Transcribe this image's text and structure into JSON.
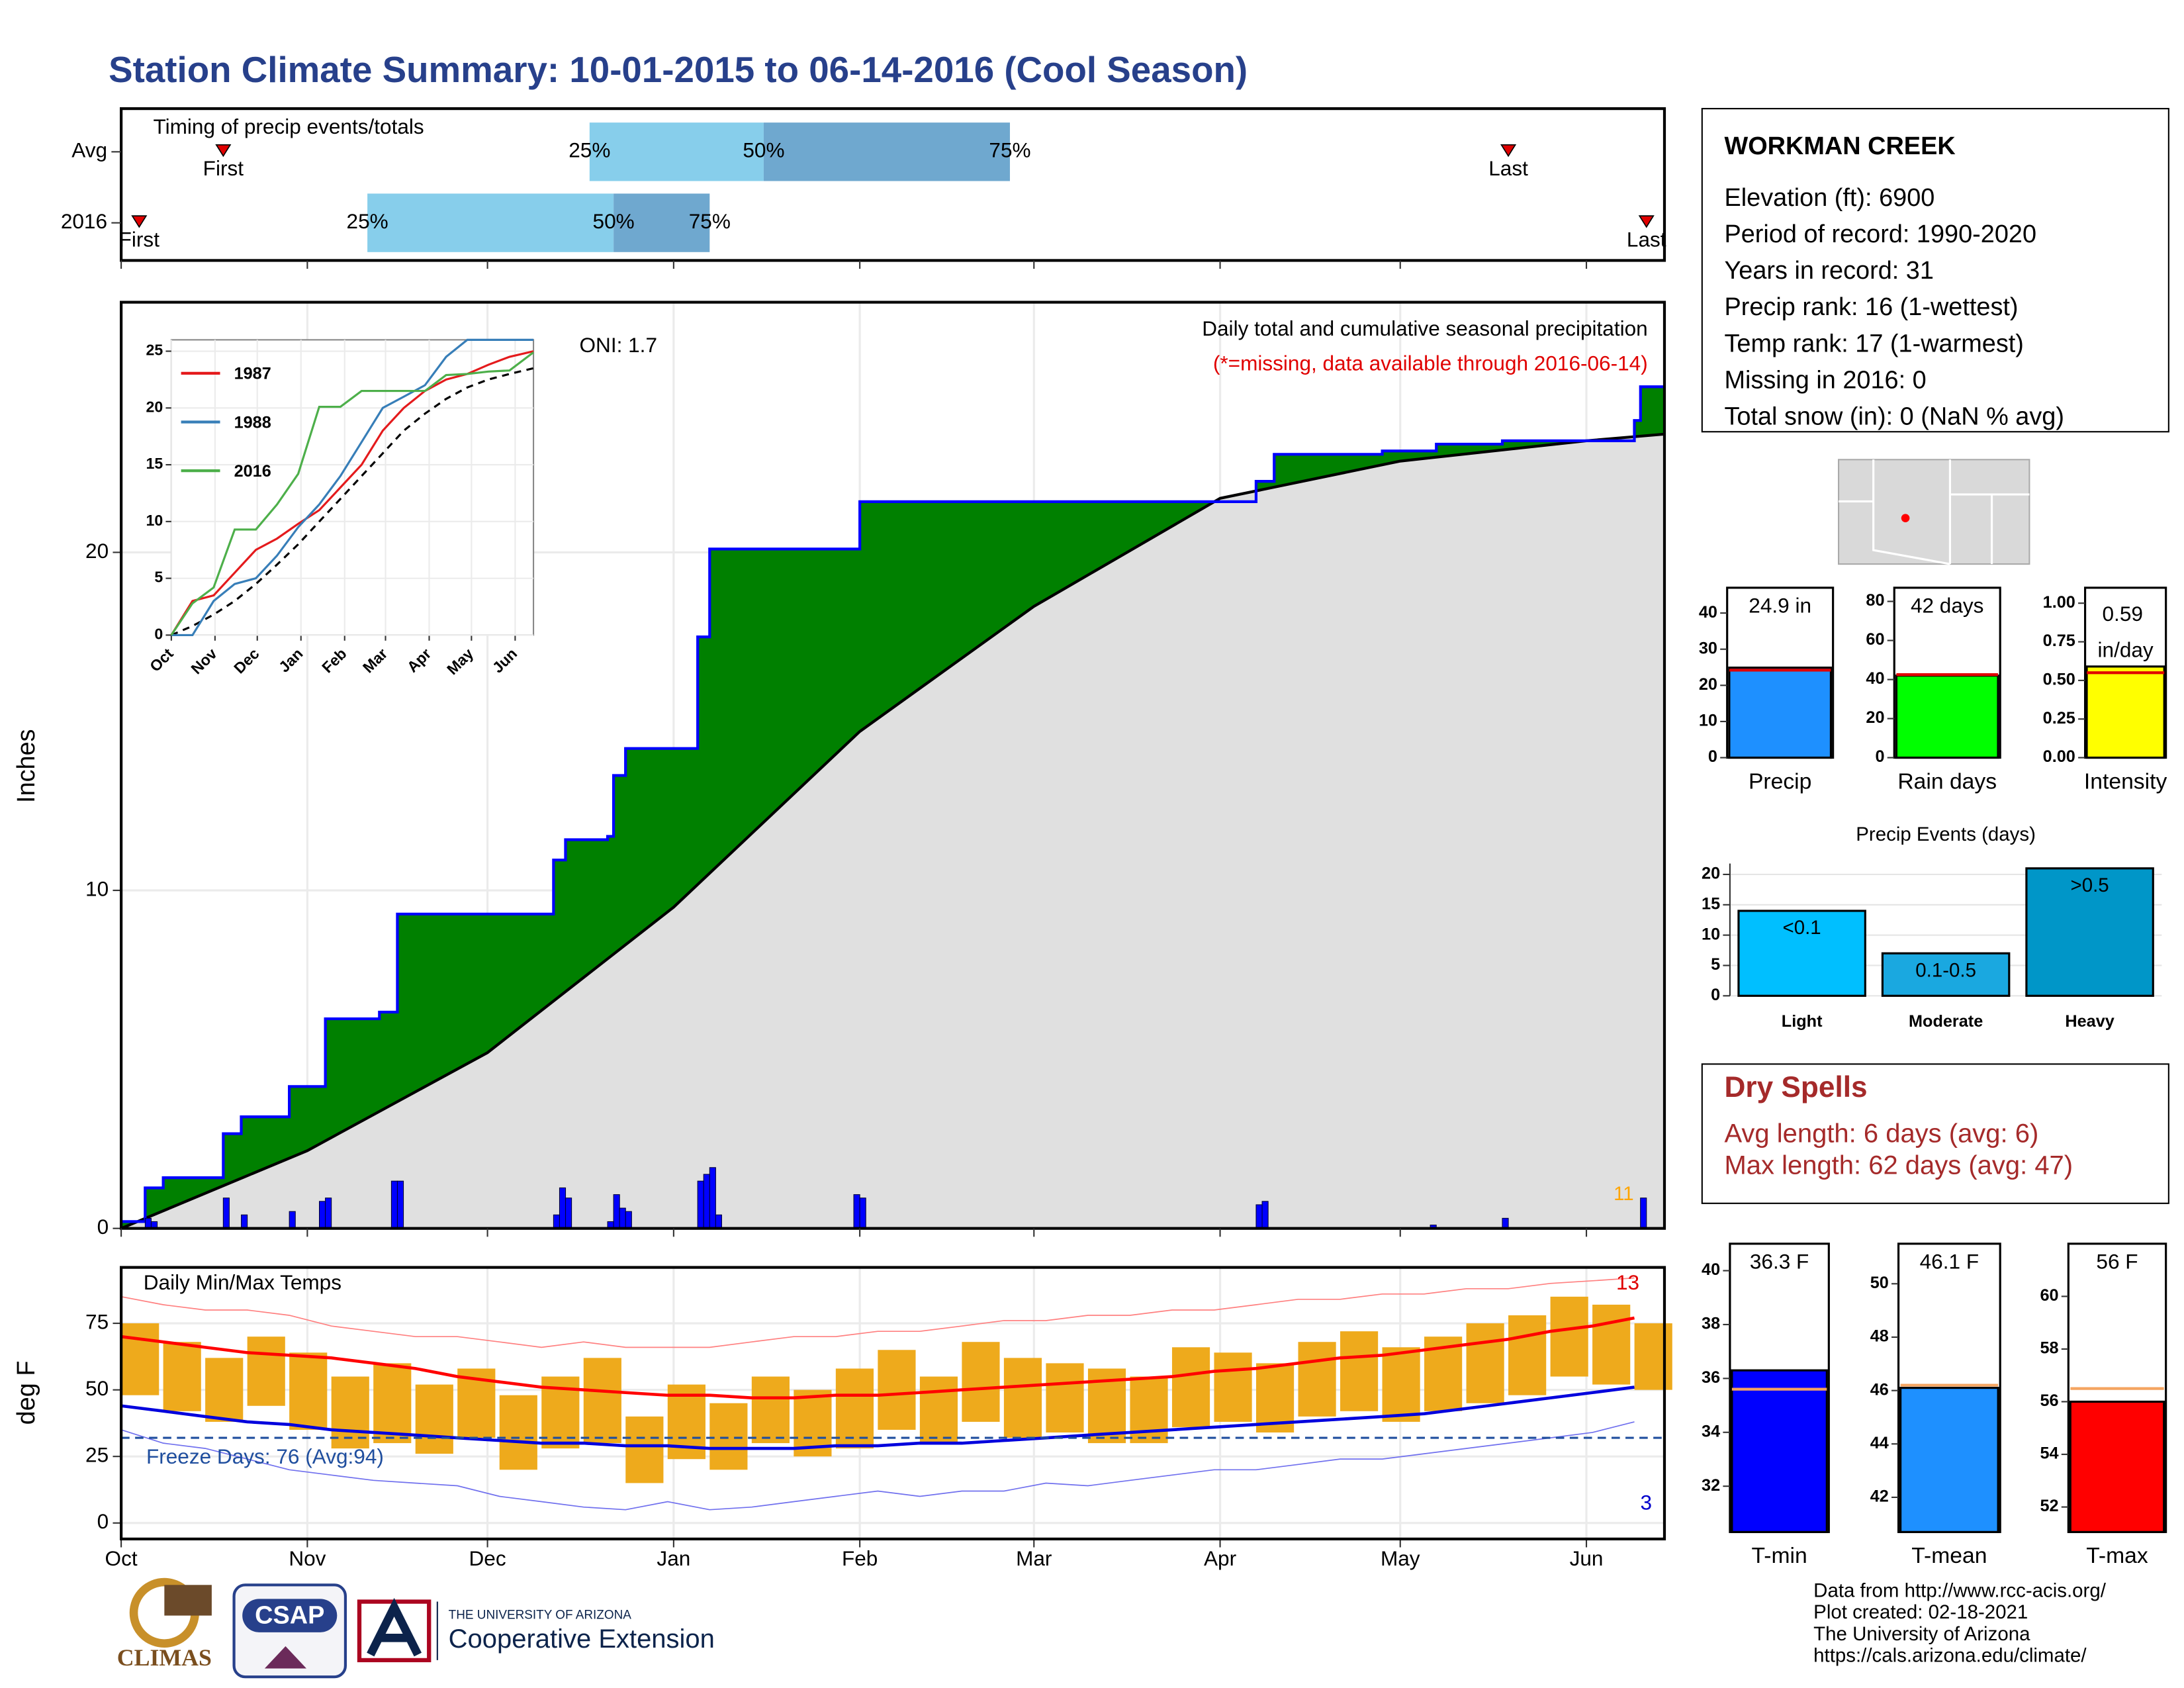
{
  "title": "Station Climate Summary: 10-01-2015 to 06-14-2016 (Cool Season)",
  "station": {
    "name": "WORKMAN CREEK",
    "lines": [
      "Elevation (ft): 6900",
      "Period of record: 1990-2020",
      "Years in record: 31",
      "Precip rank: 16 (1-wettest)",
      "Temp rank: 17 (1-warmest)",
      "Missing in 2016: 0",
      "Total snow (in): 0 (NaN % avg)"
    ]
  },
  "dry_spells": {
    "title": "Dry Spells",
    "lines": [
      "Avg length: 6 days (avg: 6)",
      "Max length: 62 days (avg: 47)"
    ]
  },
  "footer": [
    "Data from http://www.rcc-acis.org/",
    "Plot created: 02-18-2021",
    "The University of Arizona",
    "https://cals.arizona.edu/climate/"
  ],
  "logos": {
    "climas": "CLIMAS",
    "csap": "CSAP",
    "university": "THE UNIVERSITY OF ARIZONA",
    "extension": "Cooperative Extension"
  },
  "chart_data": [
    {
      "type": "timing",
      "title": "Timing of precip events/totals",
      "xlim": [
        0,
        257
      ],
      "rows": [
        {
          "label": "Avg",
          "first": 17,
          "q25": 78,
          "q50": 107,
          "q75": 148,
          "last": 231
        },
        {
          "label": "2016",
          "first": 3,
          "q25": 41,
          "q50": 82,
          "q75": 98,
          "last": 254
        }
      ],
      "marker_labels": {
        "first": "First",
        "last": "Last",
        "q25": "25%",
        "q50": "50%",
        "q75": "75%"
      },
      "colors": {
        "lower": "#87ceeb",
        "upper": "#6fa8cf",
        "marker": "#e00000"
      }
    },
    {
      "type": "precip",
      "ylabel": "Inches",
      "title": "Daily total and cumulative seasonal precipitation",
      "subtitle": "(*=missing, data available through 2016-06-14)",
      "annotation": "ONI: 1.7",
      "event_count": 11,
      "xlim": [
        0,
        257
      ],
      "ylim": [
        0,
        27.4
      ],
      "yticks": [
        0,
        10,
        20
      ],
      "grid": true,
      "cumulative": {
        "color": "#0000ff",
        "fill": "#008000",
        "x": [
          0,
          4,
          7,
          17,
          20,
          28,
          34,
          43,
          46,
          72,
          74,
          81,
          82,
          84,
          96,
          98,
          123,
          189,
          192,
          210,
          219,
          230,
          252,
          253,
          257
        ],
        "values": [
          0.2,
          1.2,
          1.5,
          2.8,
          3.3,
          4.2,
          6.2,
          6.4,
          9.3,
          10.9,
          11.5,
          11.6,
          13.4,
          14.2,
          17.5,
          20.1,
          21.5,
          22.1,
          22.9,
          23.0,
          23.2,
          23.3,
          23.9,
          24.9,
          24.9
        ]
      },
      "average": {
        "color": "#000000",
        "fill": "#e0e0e0",
        "x": [
          0,
          31,
          61,
          92,
          123,
          152,
          183,
          213,
          244,
          257
        ],
        "values": [
          0,
          2.3,
          5.2,
          9.5,
          14.7,
          18.4,
          21.6,
          22.7,
          23.3,
          23.5
        ]
      },
      "daily": {
        "color": "#0000ff",
        "x": [
          4,
          5,
          17,
          20,
          28,
          33,
          34,
          45,
          46,
          72,
          73,
          74,
          81,
          82,
          83,
          84,
          96,
          97,
          98,
          99,
          122,
          123,
          189,
          190,
          218,
          230,
          253
        ],
        "values": [
          0.3,
          0.2,
          0.9,
          0.4,
          0.5,
          0.8,
          0.9,
          1.4,
          1.4,
          0.4,
          1.2,
          0.9,
          0.2,
          1.0,
          0.6,
          0.5,
          1.4,
          1.6,
          1.8,
          0.4,
          1.0,
          0.9,
          0.7,
          0.8,
          0.1,
          0.3,
          0.9
        ]
      }
    },
    {
      "type": "line",
      "xlim": [
        0,
        257
      ],
      "ylim": [
        0,
        26
      ],
      "yticks": [
        0,
        5,
        10,
        15,
        20,
        25
      ],
      "grid": true,
      "xticks": [
        {
          "value": 0,
          "label": "Oct"
        },
        {
          "value": 31,
          "label": "Nov"
        },
        {
          "value": 61,
          "label": "Dec"
        },
        {
          "value": 92,
          "label": "Jan"
        },
        {
          "value": 123,
          "label": "Feb"
        },
        {
          "value": 152,
          "label": "Mar"
        },
        {
          "value": 183,
          "label": "Apr"
        },
        {
          "value": 213,
          "label": "May"
        },
        {
          "value": 244,
          "label": "Jun"
        }
      ],
      "x": [
        0,
        15,
        30,
        45,
        60,
        75,
        90,
        105,
        120,
        135,
        150,
        165,
        180,
        195,
        210,
        225,
        240,
        257
      ],
      "series": [
        {
          "name": "1987",
          "color": "#e41a1c",
          "values": [
            0,
            3,
            3.5,
            5.5,
            7.5,
            8.5,
            9.8,
            11,
            13,
            15,
            18,
            20,
            21.5,
            22.5,
            23,
            23.8,
            24.5,
            25
          ]
        },
        {
          "name": "1988",
          "color": "#377eb8",
          "values": [
            0,
            0,
            3,
            4.5,
            5,
            7,
            9.5,
            11.5,
            14,
            17,
            20,
            21,
            22,
            24.5,
            26,
            26,
            26,
            26
          ]
        },
        {
          "name": "2016",
          "color": "#4daf4a",
          "values": [
            0,
            2.8,
            4.2,
            9.3,
            9.3,
            11.5,
            14.2,
            20.1,
            20.1,
            21.5,
            21.5,
            21.5,
            21.5,
            22.9,
            23,
            23.2,
            23.3,
            24.9
          ]
        }
      ],
      "average": {
        "color": "#000000",
        "values": [
          0,
          0.8,
          1.8,
          3,
          4.5,
          6.2,
          8,
          10,
          12,
          14,
          16,
          18,
          19.5,
          20.8,
          21.8,
          22.5,
          23,
          23.5
        ]
      }
    },
    {
      "type": "range",
      "title": "Daily Min/Max Temps",
      "ylabel": "deg F",
      "annotation": "Freeze Days: 76 (Avg:94)",
      "record_high_count": 13,
      "record_low_count": 3,
      "freeze_line": 32,
      "xlim": [
        0,
        257
      ],
      "ylim": [
        -6,
        96
      ],
      "yticks": [
        0,
        25,
        50,
        75
      ],
      "grid": true,
      "xticks": [
        {
          "value": 0,
          "label": "Oct"
        },
        {
          "value": 31,
          "label": "Nov"
        },
        {
          "value": 61,
          "label": "Dec"
        },
        {
          "value": 92,
          "label": "Jan"
        },
        {
          "value": 123,
          "label": "Feb"
        },
        {
          "value": 152,
          "label": "Mar"
        },
        {
          "value": 183,
          "label": "Apr"
        },
        {
          "value": 213,
          "label": "May"
        },
        {
          "value": 244,
          "label": "Jun"
        }
      ],
      "x": [
        0,
        7,
        14,
        21,
        28,
        35,
        42,
        49,
        56,
        63,
        70,
        77,
        84,
        91,
        98,
        105,
        112,
        119,
        126,
        133,
        140,
        147,
        154,
        161,
        168,
        175,
        182,
        189,
        196,
        203,
        210,
        217,
        224,
        231,
        238,
        245,
        252
      ],
      "tmax": [
        75,
        68,
        62,
        70,
        64,
        55,
        60,
        52,
        58,
        48,
        55,
        62,
        40,
        52,
        45,
        55,
        50,
        58,
        65,
        55,
        68,
        62,
        60,
        58,
        55,
        66,
        64,
        60,
        68,
        72,
        66,
        70,
        75,
        78,
        85,
        82,
        75
      ],
      "tmin": [
        48,
        42,
        38,
        44,
        35,
        28,
        30,
        26,
        32,
        20,
        28,
        30,
        15,
        24,
        20,
        30,
        25,
        28,
        35,
        30,
        38,
        32,
        34,
        30,
        30,
        36,
        38,
        34,
        40,
        42,
        38,
        42,
        45,
        48,
        55,
        52,
        50
      ],
      "normal_max": [
        70,
        68,
        66,
        64,
        63,
        62,
        60,
        58,
        55,
        53,
        51,
        50,
        49,
        48,
        48,
        47,
        47,
        48,
        48,
        49,
        50,
        51,
        52,
        53,
        54,
        55,
        57,
        58,
        60,
        62,
        63,
        65,
        67,
        69,
        72,
        74,
        77
      ],
      "normal_min": [
        44,
        42,
        40,
        38,
        37,
        35,
        34,
        33,
        32,
        31,
        30,
        30,
        29,
        29,
        28,
        28,
        28,
        29,
        29,
        30,
        30,
        31,
        32,
        33,
        34,
        35,
        36,
        37,
        38,
        39,
        40,
        41,
        43,
        45,
        47,
        49,
        51
      ],
      "record_max": [
        85,
        82,
        80,
        80,
        78,
        74,
        72,
        70,
        70,
        68,
        66,
        68,
        66,
        66,
        66,
        68,
        70,
        70,
        72,
        72,
        74,
        76,
        76,
        78,
        78,
        80,
        80,
        82,
        84,
        84,
        86,
        86,
        88,
        88,
        90,
        91,
        92
      ],
      "record_min": [
        35,
        30,
        28,
        24,
        20,
        18,
        16,
        15,
        14,
        10,
        8,
        6,
        5,
        8,
        5,
        6,
        8,
        10,
        12,
        10,
        12,
        12,
        15,
        14,
        16,
        18,
        20,
        20,
        22,
        24,
        24,
        26,
        28,
        30,
        32,
        34,
        38
      ],
      "colors": {
        "bars": "#eeaa1c",
        "normal_max": "#ff0000",
        "normal_min": "#0000dd",
        "record_max": "#ff8080",
        "record_min": "#7070ee",
        "freeze": "#1f4e9e"
      }
    },
    {
      "type": "bar",
      "categories": [
        "Precip"
      ],
      "values": [
        24.9
      ],
      "value_labels": [
        "24.9 in"
      ],
      "reference_values": [
        24.2
      ],
      "color": "#1e90ff",
      "reference_color": "#e00000",
      "ylim": [
        0,
        47
      ],
      "yticks": [
        0,
        10,
        20,
        30,
        40
      ]
    },
    {
      "type": "bar",
      "categories": [
        "Rain days"
      ],
      "values": [
        42
      ],
      "value_labels": [
        "42 days"
      ],
      "reference_values": [
        42.5
      ],
      "color": "#00ff00",
      "reference_color": "#e00000",
      "ylim": [
        0,
        87
      ],
      "yticks": [
        0,
        20,
        40,
        60,
        80
      ]
    },
    {
      "type": "bar",
      "categories": [
        "Intensity"
      ],
      "values": [
        0.59
      ],
      "value_labels": [
        "0.59 in/day"
      ],
      "reference_values": [
        0.55
      ],
      "color": "#ffff00",
      "reference_color": "#e00000",
      "ylim": [
        0,
        1.1
      ],
      "yticks": [
        {
          "value": 0,
          "label": "0.00"
        },
        {
          "value": 0.25,
          "label": "0.25"
        },
        {
          "value": 0.5,
          "label": "0.50"
        },
        {
          "value": 0.75,
          "label": "0.75"
        },
        {
          "value": 1,
          "label": "1.00"
        }
      ]
    },
    {
      "type": "bar",
      "title": "Precip Events (days)",
      "categories": [
        "Light",
        "Moderate",
        "Heavy"
      ],
      "values": [
        14,
        7,
        21
      ],
      "bin_labels": [
        "<0.1",
        "0.1-0.5",
        ">0.5"
      ],
      "colors": [
        "#00bfff",
        "#1aa8e0",
        "#0096c8"
      ],
      "ylim": [
        0,
        21.8
      ],
      "yticks": [
        0,
        5,
        10,
        15,
        20
      ],
      "grid": true
    },
    {
      "type": "bar",
      "categories": [
        "T-min"
      ],
      "values": [
        36.3
      ],
      "value_labels": [
        "36.3 F"
      ],
      "reference_values": [
        35.6
      ],
      "color": "#0000ff",
      "reference_color": "#f4a460",
      "ylim": [
        30.3,
        41
      ],
      "yticks": [
        32,
        34,
        36,
        38,
        40
      ]
    },
    {
      "type": "bar",
      "categories": [
        "T-mean"
      ],
      "values": [
        46.1
      ],
      "value_labels": [
        "46.1 F"
      ],
      "reference_values": [
        46.2
      ],
      "color": "#1e90ff",
      "reference_color": "#f4a460",
      "ylim": [
        40.7,
        51.5
      ],
      "yticks": [
        42,
        44,
        46,
        48,
        50
      ]
    },
    {
      "type": "bar",
      "categories": [
        "T-max"
      ],
      "values": [
        56
      ],
      "value_labels": [
        "56 F"
      ],
      "reference_values": [
        56.5
      ],
      "color": "#ff0000",
      "reference_color": "#f4a460",
      "ylim": [
        51.05,
        62
      ],
      "yticks": [
        52,
        54,
        56,
        58,
        60
      ]
    }
  ]
}
